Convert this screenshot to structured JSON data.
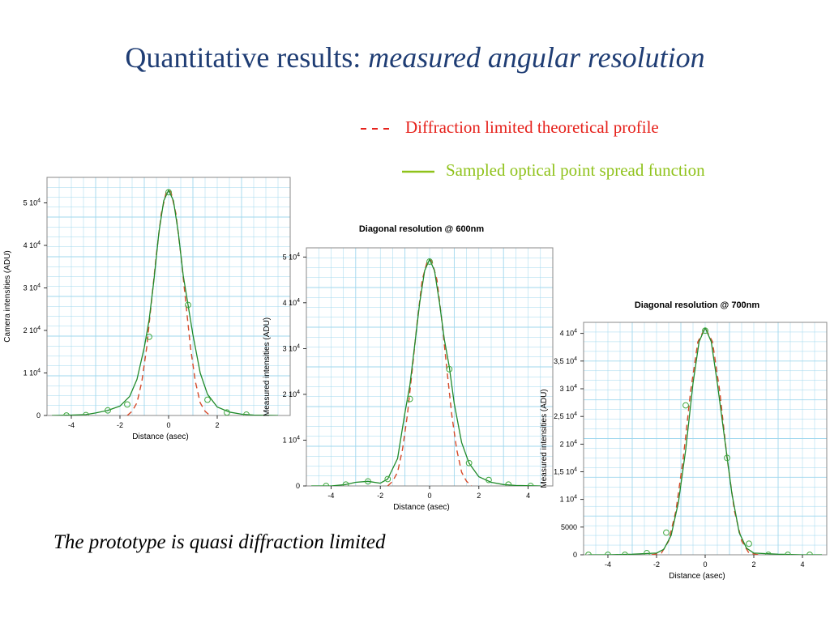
{
  "title": {
    "main": "Quantitative results: ",
    "italic": "measured angular resolution"
  },
  "legend": {
    "dashed": {
      "label": "Diffraction limited theoretical profile",
      "color": "#e6221c"
    },
    "solid": {
      "label": "Sampled optical point spread function",
      "color": "#8fc21a"
    }
  },
  "caption": "The prototype is quasi diffraction limited",
  "colors": {
    "grid": "#9fd7ee",
    "theory": "#d64a2a",
    "psf": "#1f8a2a",
    "markers": "#3fa83f"
  },
  "chart_data": [
    {
      "type": "line",
      "title": "",
      "xlabel": "Distance (asec)",
      "ylabel": "Camera intensities (ADU)",
      "xlim": [
        -5,
        5
      ],
      "ylim": [
        0,
        56000
      ],
      "xticks": [
        -4,
        -2,
        0,
        2
      ],
      "yticks": [
        {
          "value": 0,
          "base": "0",
          "exp": ""
        },
        {
          "value": 10000,
          "base": "1 10",
          "exp": "4"
        },
        {
          "value": 20000,
          "base": "2 10",
          "exp": "4"
        },
        {
          "value": 30000,
          "base": "3 10",
          "exp": "4"
        },
        {
          "value": 40000,
          "base": "4 10",
          "exp": "4"
        },
        {
          "value": 50000,
          "base": "5 10",
          "exp": "4"
        }
      ],
      "series": [
        {
          "name": "Diffraction limited theoretical profile",
          "style": "dashed",
          "x": [
            -1.7,
            -1.5,
            -1.3,
            -1.1,
            -0.9,
            -0.7,
            -0.5,
            -0.3,
            -0.1,
            0,
            0.1,
            0.3,
            0.5,
            0.7,
            0.9,
            1.1,
            1.3,
            1.5,
            1.7
          ],
          "y": [
            0,
            1000,
            3000,
            8000,
            16000,
            27000,
            38000,
            47500,
            52500,
            53000,
            52500,
            47500,
            38000,
            27000,
            16000,
            8000,
            3000,
            1000,
            0
          ]
        },
        {
          "name": "Sampled optical point spread function",
          "style": "solid",
          "x": [
            -4.8,
            -4,
            -3.4,
            -3,
            -2.5,
            -2,
            -1.6,
            -1.3,
            -1,
            -0.8,
            -0.6,
            -0.4,
            -0.2,
            0,
            0.2,
            0.4,
            0.6,
            0.8,
            1,
            1.3,
            1.6,
            2,
            2.5,
            3,
            3.5,
            4.5
          ],
          "y": [
            0,
            100,
            200,
            600,
            1200,
            2200,
            4500,
            8500,
            16000,
            22500,
            32000,
            43000,
            50500,
            53000,
            50500,
            43000,
            33000,
            26000,
            19000,
            10000,
            5000,
            2000,
            800,
            300,
            100,
            0
          ]
        },
        {
          "name": "samples",
          "style": "markers",
          "x": [
            -4.2,
            -3.4,
            -2.5,
            -1.7,
            -0.8,
            0,
            0.8,
            1.6,
            2.4,
            3.2
          ],
          "y": [
            0,
            100,
            1200,
            2600,
            18500,
            52500,
            26000,
            3700,
            700,
            200
          ]
        }
      ]
    },
    {
      "type": "line",
      "title": "Diagonal resolution @ 600nm",
      "xlabel": "Distance (asec)",
      "ylabel": "Measured intensities (ADU)",
      "xlim": [
        -5,
        5
      ],
      "ylim": [
        0,
        52000
      ],
      "xticks": [
        -4,
        -2,
        0,
        2,
        4
      ],
      "yticks": [
        {
          "value": 0,
          "base": "0",
          "exp": ""
        },
        {
          "value": 10000,
          "base": "1 10",
          "exp": "4"
        },
        {
          "value": 20000,
          "base": "2 10",
          "exp": "4"
        },
        {
          "value": 30000,
          "base": "3 10",
          "exp": "4"
        },
        {
          "value": 40000,
          "base": "4 10",
          "exp": "4"
        },
        {
          "value": 50000,
          "base": "5 10",
          "exp": "4"
        }
      ],
      "series": [
        {
          "name": "Diffraction limited theoretical profile",
          "style": "dashed",
          "x": [
            -1.7,
            -1.5,
            -1.3,
            -1.1,
            -0.9,
            -0.7,
            -0.5,
            -0.3,
            -0.1,
            0,
            0.1,
            0.3,
            0.5,
            0.7,
            0.9,
            1.1,
            1.3,
            1.5,
            1.7
          ],
          "y": [
            0,
            1000,
            3000,
            8000,
            15500,
            25500,
            36000,
            45000,
            49000,
            49500,
            49000,
            45000,
            36000,
            25500,
            15500,
            8000,
            3000,
            1000,
            0
          ]
        },
        {
          "name": "Sampled optical point spread function",
          "style": "solid",
          "x": [
            -4.8,
            -4,
            -3.4,
            -3,
            -2.5,
            -2,
            -1.7,
            -1.3,
            -1,
            -0.8,
            -0.6,
            -0.4,
            -0.2,
            0,
            0.2,
            0.4,
            0.6,
            0.8,
            1,
            1.3,
            1.6,
            2,
            2.5,
            3,
            3.5,
            4.5
          ],
          "y": [
            0,
            0,
            300,
            800,
            1000,
            600,
            1500,
            6000,
            16000,
            22000,
            31000,
            40000,
            47000,
            49500,
            47000,
            40000,
            32000,
            26000,
            18000,
            9500,
            5000,
            2000,
            800,
            300,
            100,
            0
          ]
        },
        {
          "name": "samples",
          "style": "markers",
          "x": [
            -4.2,
            -3.4,
            -2.5,
            -1.7,
            -0.8,
            0,
            0.8,
            1.6,
            2.4,
            3.2,
            4.1
          ],
          "y": [
            0,
            300,
            1000,
            1500,
            19000,
            49000,
            25500,
            5000,
            1300,
            300,
            0
          ]
        }
      ]
    },
    {
      "type": "line",
      "title": "Diagonal resolution @ 700nm",
      "xlabel": "Distance (asec)",
      "ylabel": "Measured intensities (ADU)",
      "xlim": [
        -5,
        5
      ],
      "ylim": [
        0,
        42000
      ],
      "xticks": [
        -4,
        -2,
        0,
        2,
        4
      ],
      "yticks": [
        {
          "value": 0,
          "base": "0",
          "exp": ""
        },
        {
          "value": 5000,
          "base": "5000",
          "exp": ""
        },
        {
          "value": 10000,
          "base": "1 10",
          "exp": "4"
        },
        {
          "value": 15000,
          "base": "1,5 10",
          "exp": "4"
        },
        {
          "value": 20000,
          "base": "2 10",
          "exp": "4"
        },
        {
          "value": 25000,
          "base": "2,5 10",
          "exp": "4"
        },
        {
          "value": 30000,
          "base": "3 10",
          "exp": "4"
        },
        {
          "value": 35000,
          "base": "3,5 10",
          "exp": "4"
        },
        {
          "value": 40000,
          "base": "4 10",
          "exp": "4"
        }
      ],
      "series": [
        {
          "name": "Diffraction limited theoretical profile",
          "style": "dashed",
          "x": [
            -2.2,
            -1.8,
            -1.5,
            -1.2,
            -0.9,
            -0.6,
            -0.3,
            0,
            0.3,
            0.6,
            0.9,
            1.2,
            1.5,
            1.8,
            2.2
          ],
          "y": [
            0,
            300,
            2500,
            8000,
            17500,
            29500,
            38500,
            41000,
            38500,
            29500,
            17500,
            8000,
            2500,
            300,
            0
          ]
        },
        {
          "name": "Sampled optical point spread function",
          "style": "solid",
          "x": [
            -4.8,
            -4,
            -3,
            -2,
            -1.7,
            -1.4,
            -1.1,
            -0.8,
            -0.5,
            -0.25,
            0,
            0.25,
            0.5,
            0.8,
            1.1,
            1.4,
            1.7,
            2,
            3,
            4,
            4.8
          ],
          "y": [
            0,
            0,
            100,
            300,
            1000,
            3500,
            9500,
            19000,
            31000,
            38500,
            41000,
            38500,
            31000,
            21000,
            11000,
            4000,
            1200,
            300,
            100,
            0,
            0
          ]
        },
        {
          "name": "samples",
          "style": "markers",
          "x": [
            -4.8,
            -4,
            -3.3,
            -2.4,
            -1.6,
            -0.8,
            0,
            0.9,
            1.8,
            2.6,
            3.4,
            4.3
          ],
          "y": [
            0,
            0,
            0,
            300,
            4000,
            27000,
            40500,
            17500,
            2000,
            0,
            0,
            0
          ]
        }
      ]
    }
  ]
}
